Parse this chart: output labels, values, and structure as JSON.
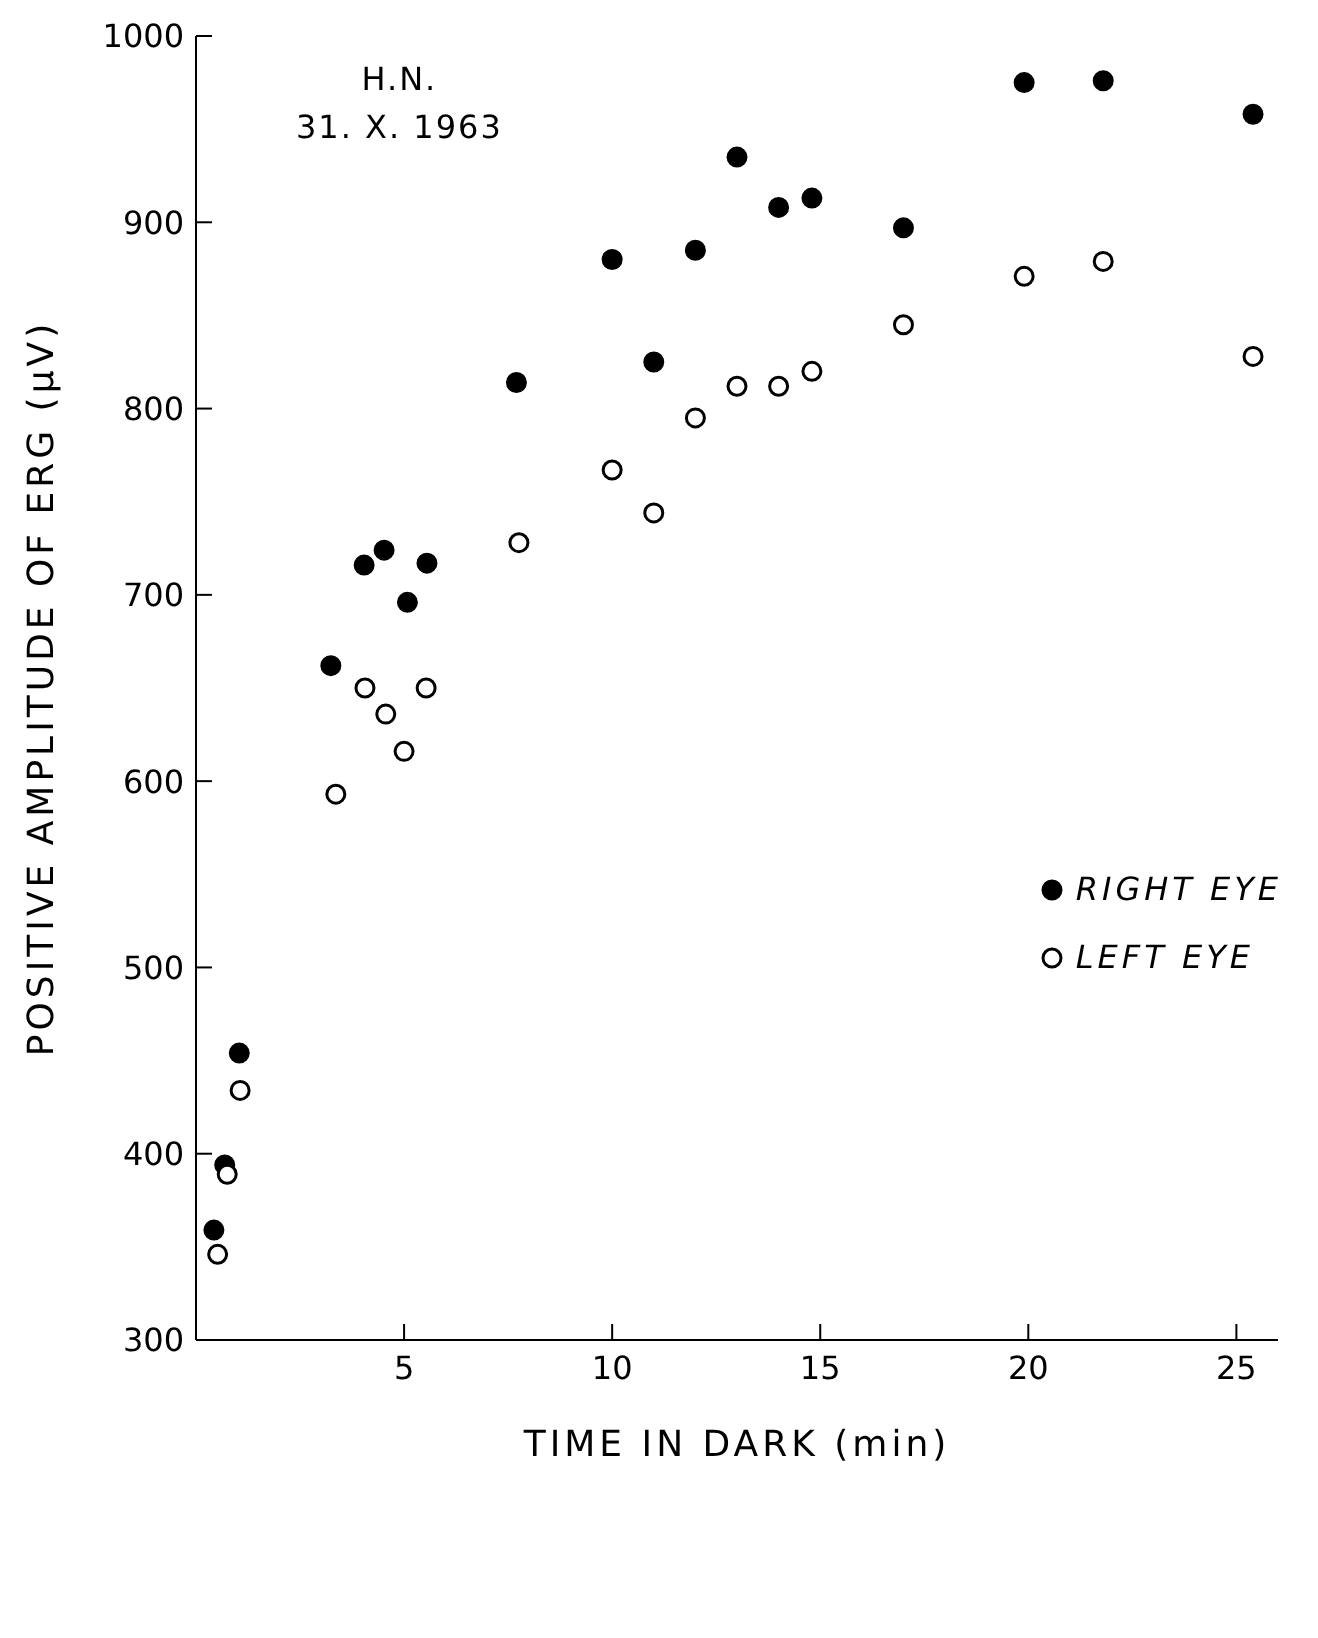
{
  "chart_data": {
    "type": "scatter",
    "xlabel": "TIME IN DARK (min)",
    "ylabel": "POSITIVE AMPLITUDE OF ERG (µV)",
    "annotations": [
      "H.N.",
      "31. X. 1963"
    ],
    "xlim": [
      0,
      26
    ],
    "xticks": [
      5,
      10,
      15,
      20,
      25
    ],
    "ylim": [
      300,
      1000
    ],
    "yticks": [
      300,
      400,
      500,
      600,
      700,
      800,
      900,
      1000
    ],
    "grid": false,
    "legend": "right",
    "marker": "circle",
    "series": [
      {
        "name": "RIGHT EYE",
        "color": "#000000",
        "x": [
          0.43,
          0.69,
          1.04,
          3.24,
          4.04,
          4.52,
          5.08,
          5.55,
          7.7,
          10,
          11,
          12,
          13,
          14,
          14.8,
          17,
          19.9,
          21.8,
          25.4
        ],
        "values": [
          359,
          394,
          454,
          662,
          716,
          724,
          696,
          717,
          814,
          880,
          825,
          885,
          935,
          908,
          913,
          897,
          975,
          976,
          958
        ]
      },
      {
        "name": "LEFT EYE",
        "color": "#000000",
        "x": [
          0.52,
          0.75,
          1.06,
          3.36,
          4.06,
          4.56,
          5.0,
          5.53,
          7.76,
          10,
          11,
          12,
          13,
          14,
          14.8,
          17,
          19.9,
          21.8,
          25.4
        ],
        "values": [
          346,
          389,
          434,
          593,
          650,
          636,
          616,
          650,
          728,
          767,
          744,
          795,
          812,
          812,
          820,
          845,
          871,
          879,
          828
        ]
      }
    ]
  }
}
